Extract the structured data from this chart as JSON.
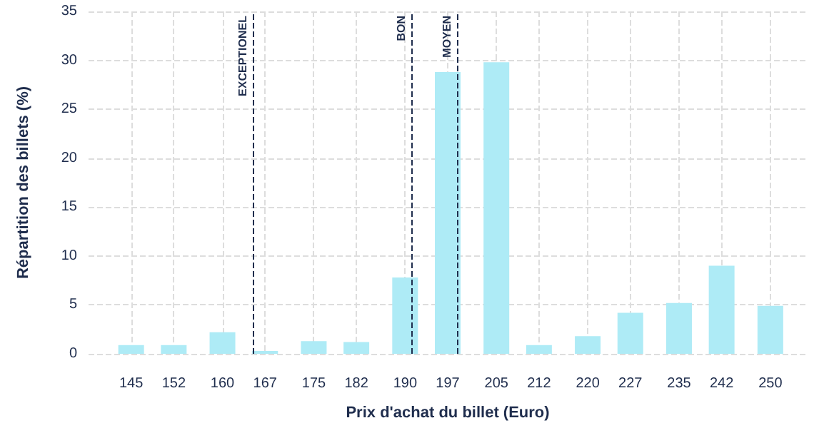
{
  "chart_data": {
    "type": "bar",
    "xlabel": "Prix d'achat du billet (Euro)",
    "ylabel": "Répartition des billets (%)",
    "x": [
      145,
      152,
      160,
      167,
      175,
      182,
      190,
      197,
      205,
      212,
      220,
      227,
      235,
      242,
      250
    ],
    "values": [
      0.9,
      0.9,
      2.2,
      0.3,
      1.3,
      1.2,
      7.8,
      28.8,
      29.8,
      0.9,
      1.8,
      4.2,
      5.2,
      9,
      4.9
    ],
    "color": "#aeebf6",
    "xlim": [
      138,
      256
    ],
    "xticks": [
      145,
      152,
      160,
      167,
      175,
      182,
      190,
      197,
      205,
      212,
      220,
      227,
      235,
      242,
      250
    ],
    "ylim": [
      0,
      35
    ],
    "yticks": [
      0,
      5,
      10,
      15,
      20,
      25,
      30,
      35
    ],
    "ref_lines": [
      {
        "axis": "x",
        "value": 165,
        "label": "EXCEPTIONEL",
        "color": "#1f2d4d",
        "line_style": "dashed"
      },
      {
        "axis": "x",
        "value": 191,
        "label": "BON",
        "color": "#1f2d4d",
        "line_style": "dashed"
      },
      {
        "axis": "x",
        "value": 198.5,
        "label": "MOYEN",
        "color": "#1f2d4d",
        "line_style": "dashed"
      }
    ],
    "grid": true
  }
}
